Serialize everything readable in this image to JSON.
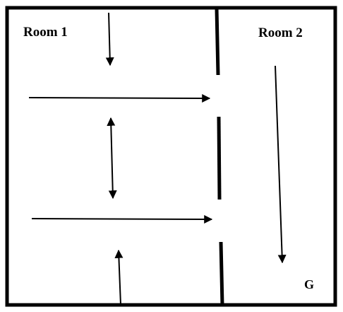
{
  "rooms": {
    "room1": {
      "label": "Room 1"
    },
    "room2": {
      "label": "Room 2"
    }
  },
  "goal": {
    "label": "G"
  },
  "colors": {
    "stroke": "#000000",
    "background": "#ffffff"
  },
  "icons": {
    "arrow": "arrow-icon",
    "double_arrow": "double-arrow-icon",
    "wall": "wall-segment"
  }
}
